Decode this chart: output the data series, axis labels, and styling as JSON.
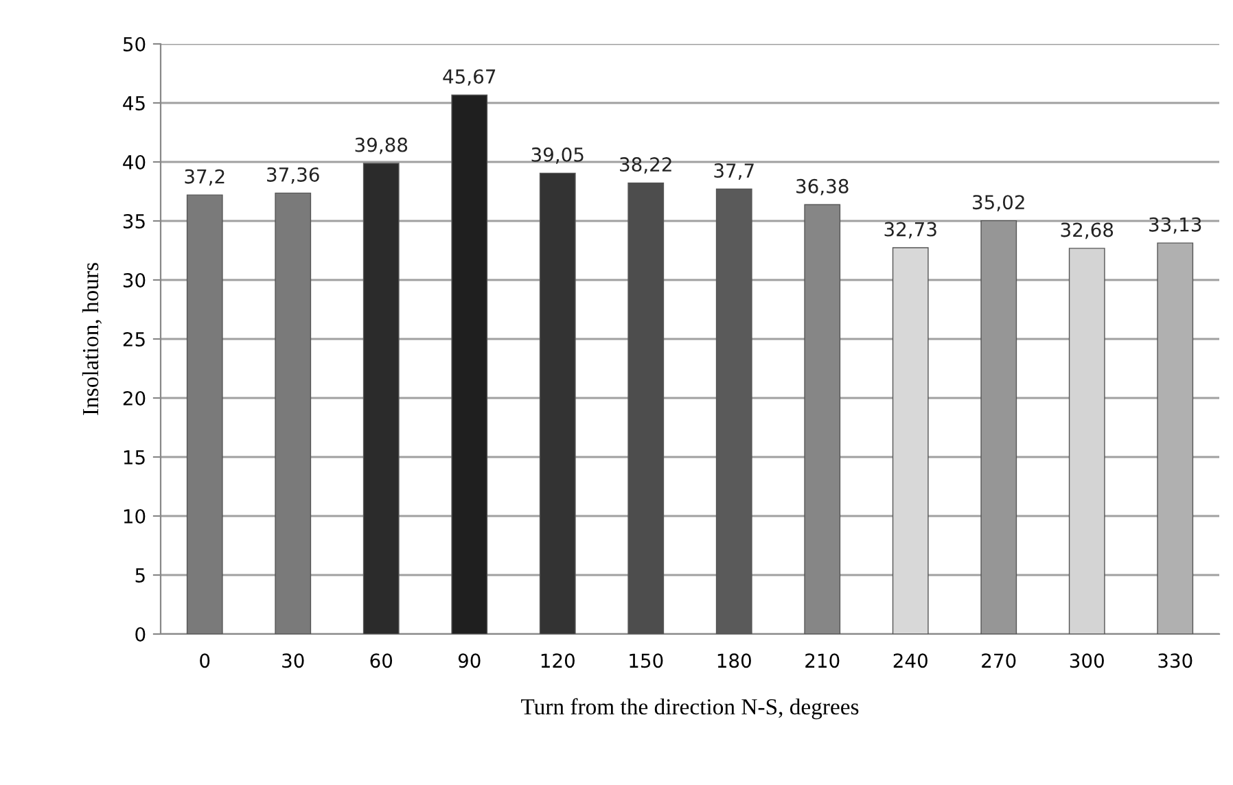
{
  "chart_data": {
    "type": "bar",
    "xlabel": "Turn from the direction N-S, degrees",
    "ylabel": "Insolation, hours",
    "categories": [
      "0",
      "30",
      "60",
      "90",
      "120",
      "150",
      "180",
      "210",
      "240",
      "270",
      "300",
      "330"
    ],
    "values": [
      37.2,
      37.36,
      39.88,
      45.67,
      39.05,
      38.22,
      37.7,
      36.38,
      32.73,
      35.02,
      32.68,
      33.13
    ],
    "value_labels": [
      "37,2",
      "37,36",
      "39,88",
      "45,67",
      "39,05",
      "38,22",
      "37,7",
      "36,38",
      "32,73",
      "35,02",
      "32,68",
      "33,13"
    ],
    "colors": [
      "#7a7a7a",
      "#7a7a7a",
      "#2b2b2b",
      "#1f1f1f",
      "#333333",
      "#4d4d4d",
      "#5a5a5a",
      "#868686",
      "#d8d8d8",
      "#969696",
      "#d4d4d4",
      "#b0b0b0"
    ],
    "ylim": [
      0,
      50
    ],
    "yticks": [
      0,
      5,
      10,
      15,
      20,
      25,
      30,
      35,
      40,
      45,
      50
    ],
    "grid": "y",
    "legend": false
  }
}
